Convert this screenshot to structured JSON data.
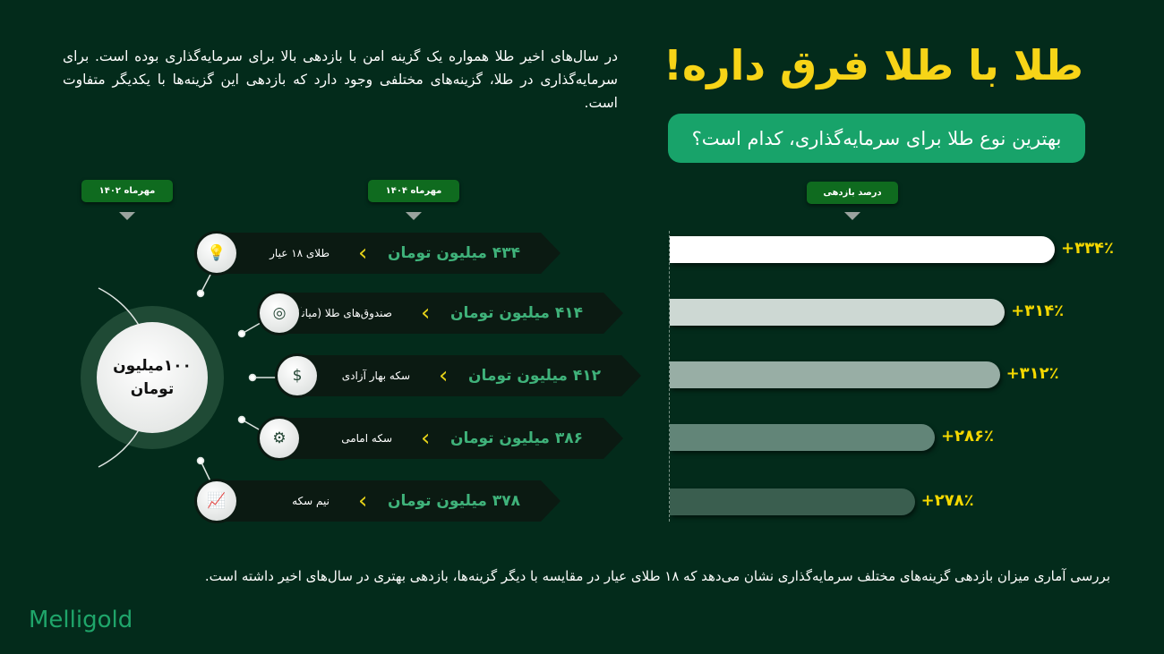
{
  "header": {
    "title": "طلا با طلا فرق داره!",
    "subtitle": "بهترین نوع طلا برای سرمایه‌گذاری، کدام است؟",
    "intro": "در سال‌های اخیر طلا همواره یک گزینه امن با بازدهی بالا برای سرمایه‌گذاری بوده است. برای سرمایه‌گذاری در طلا، گزینه‌های مختلفی وجود دارد که بازدهی این گزینه‌ها با یکدیگر متفاوت است."
  },
  "tags": {
    "start": "مهرماه ۱۴۰۲",
    "end": "مهرماه ۱۴۰۴",
    "return": "درصد بازدهی"
  },
  "center": {
    "line1": "۱۰۰میلیون",
    "line2": "تومان"
  },
  "items": [
    {
      "name": "طلای ۱۸ عیار",
      "amount": "۴۳۴ میلیون تومان",
      "icon": "lightbulb-icon",
      "glyph": "💡"
    },
    {
      "name": "صندوق‌های طلا (میانگین)",
      "amount": "۴۱۴ میلیون تومان",
      "icon": "target-icon",
      "glyph": "◎"
    },
    {
      "name": "سکه بهار آزادی",
      "amount": "۴۱۲ میلیون تومان",
      "icon": "coin-hand-icon",
      "glyph": "$"
    },
    {
      "name": "سکه امامی",
      "amount": "۳۸۶ میلیون تومان",
      "icon": "dollar-gear-icon",
      "glyph": "⚙"
    },
    {
      "name": "نیم سکه",
      "amount": "۳۷۸ میلیون تومان",
      "icon": "growth-chart-icon",
      "glyph": "📈"
    }
  ],
  "chart_data": {
    "type": "bar",
    "orientation": "horizontal",
    "categories": [
      "طلای ۱۸ عیار",
      "صندوق‌های طلا (میانگین)",
      "سکه بهار آزادی",
      "سکه امامی",
      "نیم سکه"
    ],
    "values": [
      334,
      314,
      312,
      286,
      278
    ],
    "labels": [
      "+۳۳۴٪",
      "+۳۱۴٪",
      "+۳۱۲٪",
      "+۲۸۶٪",
      "+۲۷۸٪"
    ],
    "ylabel": "درصد بازدهی",
    "colors": [
      "#ffffff",
      "#cdd8d3",
      "#98aea5",
      "#628578",
      "#3a5e4f"
    ],
    "label_color": "#f5d800",
    "grid": false
  },
  "footer": "بررسی آماری میزان بازدهی گزینه‌های مختلف سرمایه‌گذاری نشان می‌دهد که ۱۸ طلای عیار در مقایسه با دیگر گزینه‌ها، بازدهی بهتری در سال‌های اخیر داشته است.",
  "logo": "Melligold"
}
